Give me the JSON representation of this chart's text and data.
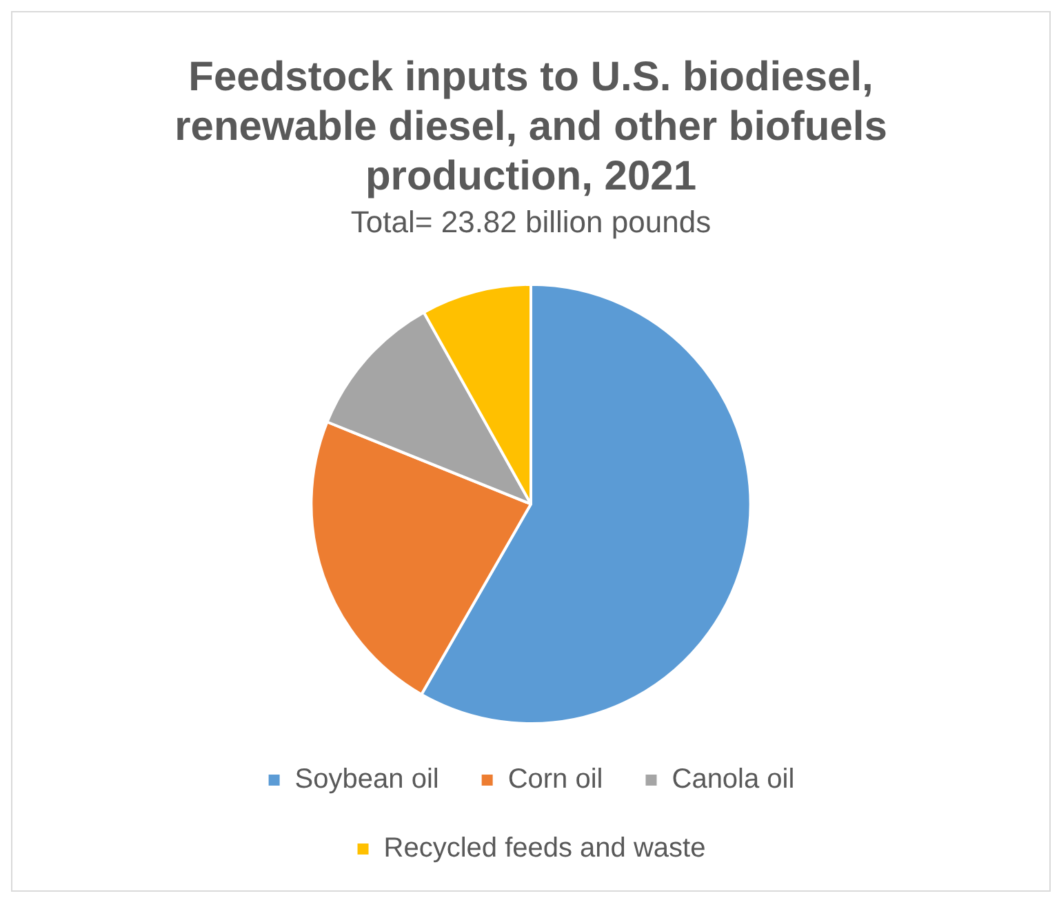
{
  "chart_data": {
    "type": "pie",
    "title": "Feedstock inputs to U.S. biodiesel, renewable diesel, and other biofuels production, 2021",
    "subtitle": "Total= 23.82 billion pounds",
    "categories": [
      "Soybean oil",
      "Corn oil",
      "Canola oil",
      "Recycled feeds and waste"
    ],
    "values": [
      58.3,
      22.8,
      10.8,
      8.1
    ],
    "colors": [
      "#5b9bd5",
      "#ed7d31",
      "#a5a5a5",
      "#ffc000"
    ],
    "legend": "bottom"
  }
}
